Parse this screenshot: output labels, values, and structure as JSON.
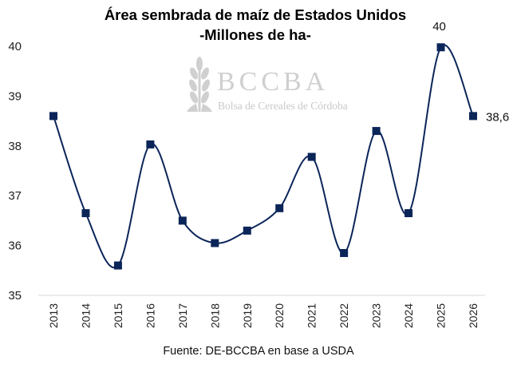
{
  "chart_data": {
    "type": "line",
    "title": "Área sembrada de maíz de Estados Unidos",
    "subtitle": "-Millones de ha-",
    "xlabel": "",
    "ylabel": "",
    "categories": [
      "2013",
      "2014",
      "2015",
      "2016",
      "2017",
      "2018",
      "2019",
      "2020",
      "2021",
      "2022",
      "2023",
      "2024",
      "2025",
      "2026"
    ],
    "series": [
      {
        "name": "Área sembrada",
        "values": [
          38.6,
          36.65,
          35.6,
          38.03,
          36.5,
          36.05,
          36.3,
          36.75,
          37.78,
          35.85,
          38.3,
          36.65,
          39.98,
          38.6
        ],
        "color": "#0b2559"
      }
    ],
    "ylim": [
      35,
      40
    ],
    "yticks": [
      "35",
      "36",
      "37",
      "38",
      "39",
      "40"
    ],
    "data_labels": [
      {
        "index": 12,
        "text": "40"
      },
      {
        "index": 13,
        "text": "38,6"
      }
    ],
    "grid": false,
    "smooth": true
  },
  "watermark": {
    "name": "BCCBA",
    "subtitle": "Bolsa de Cereales de Córdoba"
  },
  "source": "Fuente: DE-BCCBA en base a USDA"
}
